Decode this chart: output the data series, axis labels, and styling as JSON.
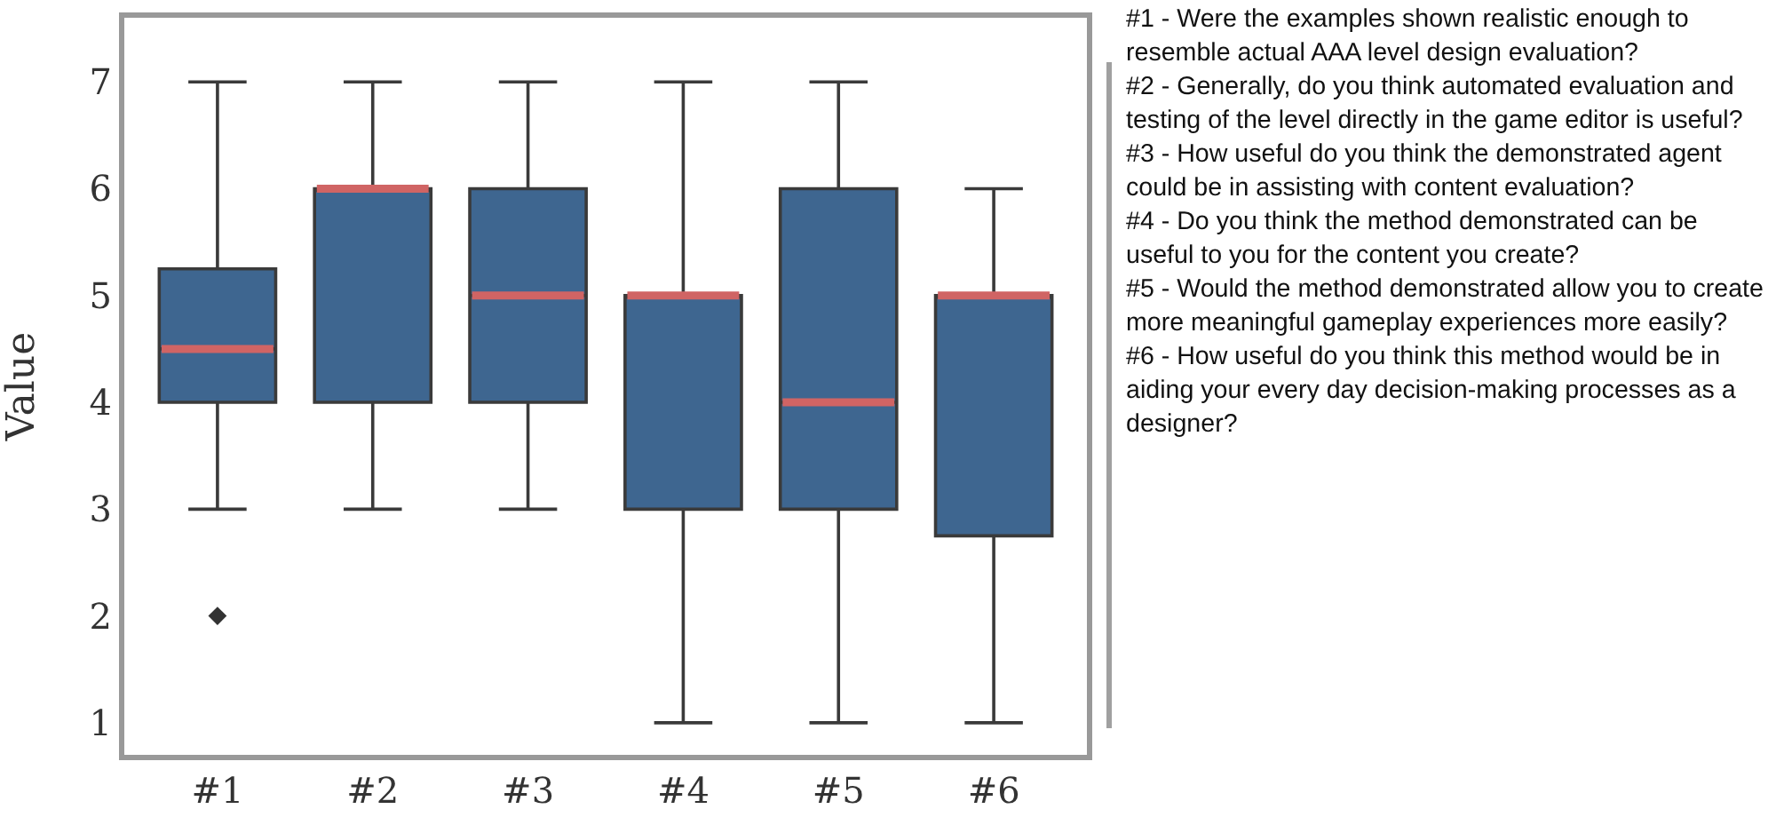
{
  "chart_data": {
    "type": "box",
    "ylabel": "Value",
    "categories": [
      "#1",
      "#2",
      "#3",
      "#4",
      "#5",
      "#6"
    ],
    "series": [
      {
        "color": "#3e6690",
        "boxes": [
          {
            "low": 3,
            "q1": 4,
            "median": 4.5,
            "q3": 5.25,
            "high": 7,
            "outliers": [
              2
            ]
          },
          {
            "low": 3,
            "q1": 4,
            "median": 6,
            "q3": 6,
            "high": 7
          },
          {
            "low": 3,
            "q1": 4,
            "median": 5,
            "q3": 6,
            "high": 7
          },
          {
            "low": 1,
            "q1": 3,
            "median": 5,
            "q3": 5,
            "high": 7
          },
          {
            "low": 1,
            "q1": 3,
            "median": 4,
            "q3": 6,
            "high": 7
          },
          {
            "low": 1,
            "q1": 2.75,
            "median": 5,
            "q3": 5,
            "high": 6
          }
        ]
      }
    ],
    "ylim": [
      0.7,
      7.6
    ],
    "yticks": [
      1,
      2,
      3,
      4,
      5,
      6,
      7
    ],
    "grid": false,
    "annotations": [
      "#1 - Were the examples shown realistic enough to resemble actual AAA level design evaluation?",
      "#2 - Generally, do you think automated evaluation and testing of the level directly in the game editor is useful?",
      "#3 - How useful do you think the demonstrated agent could be in assisting with content evaluation?",
      "#4 - Do you think the method demonstrated can be useful to you for the content you create?",
      "#5 - Would the method demonstrated allow you to create more meaningful gameplay experiences more easily?",
      "#6 - How useful do you think this method would be in aiding your every day decision-making processes as a designer?"
    ]
  }
}
